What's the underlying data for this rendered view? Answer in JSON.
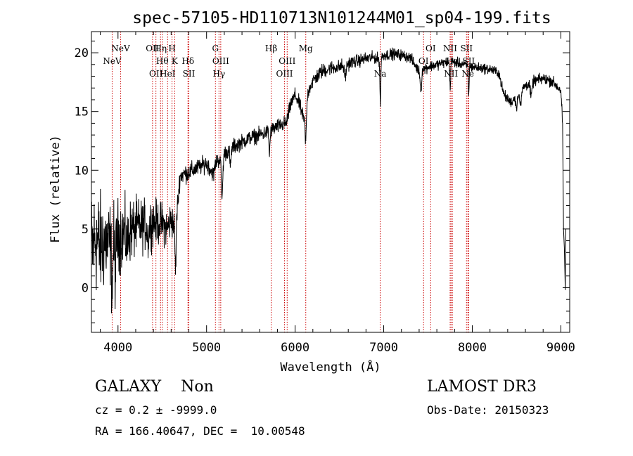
{
  "chart_data": {
    "type": "line",
    "title": "spec-57105-HD110713N101244M01_sp04-199.fits",
    "xlabel": "Wavelength (Å)",
    "ylabel": "Flux (relative)",
    "xlim": [
      3700,
      9100
    ],
    "ylim": [
      -3.8,
      21.8
    ],
    "x_ticks": [
      4000,
      5000,
      6000,
      7000,
      8000,
      9000
    ],
    "y_ticks": [
      0,
      5,
      10,
      15,
      20
    ],
    "series": [
      {
        "name": "spectrum",
        "color": "#000000",
        "anchors": [
          [
            3700,
            3.0
          ],
          [
            3750,
            4.2
          ],
          [
            3800,
            3.5
          ],
          [
            3850,
            4.0
          ],
          [
            3900,
            3.6
          ],
          [
            3950,
            4.6
          ],
          [
            4000,
            4.4
          ],
          [
            4100,
            4.7
          ],
          [
            4200,
            5.1
          ],
          [
            4300,
            5.3
          ],
          [
            4400,
            5.6
          ],
          [
            4500,
            5.5
          ],
          [
            4550,
            5.0
          ],
          [
            4600,
            5.8
          ],
          [
            4650,
            5.0
          ],
          [
            4700,
            9.5
          ],
          [
            4750,
            9.7
          ],
          [
            4800,
            9.8
          ],
          [
            4900,
            10.2
          ],
          [
            5000,
            10.6
          ],
          [
            5080,
            9.6
          ],
          [
            5100,
            10.6
          ],
          [
            5200,
            11.4
          ],
          [
            5300,
            12.0
          ],
          [
            5400,
            12.4
          ],
          [
            5500,
            12.8
          ],
          [
            5600,
            13.0
          ],
          [
            5700,
            13.3
          ],
          [
            5800,
            13.7
          ],
          [
            5900,
            14.0
          ],
          [
            5950,
            15.6
          ],
          [
            6000,
            16.4
          ],
          [
            6050,
            15.6
          ],
          [
            6100,
            14.2
          ],
          [
            6150,
            16.8
          ],
          [
            6200,
            17.6
          ],
          [
            6300,
            18.4
          ],
          [
            6400,
            18.7
          ],
          [
            6500,
            18.8
          ],
          [
            6600,
            19.1
          ],
          [
            6700,
            19.3
          ],
          [
            6800,
            19.5
          ],
          [
            6900,
            19.6
          ],
          [
            6950,
            19.4
          ],
          [
            7000,
            19.8
          ],
          [
            7100,
            19.9
          ],
          [
            7200,
            19.8
          ],
          [
            7300,
            19.6
          ],
          [
            7400,
            18.4
          ],
          [
            7450,
            18.6
          ],
          [
            7500,
            18.8
          ],
          [
            7600,
            19.0
          ],
          [
            7700,
            19.2
          ],
          [
            7800,
            19.2
          ],
          [
            7900,
            19.0
          ],
          [
            8000,
            18.8
          ],
          [
            8100,
            18.7
          ],
          [
            8200,
            18.6
          ],
          [
            8300,
            18.3
          ],
          [
            8350,
            16.6
          ],
          [
            8400,
            16.0
          ],
          [
            8450,
            15.8
          ],
          [
            8500,
            16.6
          ],
          [
            8600,
            17.2
          ],
          [
            8700,
            17.6
          ],
          [
            8800,
            17.8
          ],
          [
            8900,
            17.6
          ],
          [
            8950,
            17.2
          ],
          [
            9000,
            16.8
          ],
          [
            9020,
            14.0
          ]
        ],
        "noise": [
          [
            3700,
            3.6
          ],
          [
            4000,
            2.2
          ],
          [
            4300,
            1.5
          ],
          [
            4600,
            1.1
          ],
          [
            4700,
            0.6
          ],
          [
            5000,
            0.5
          ],
          [
            5500,
            0.45
          ],
          [
            6000,
            0.45
          ],
          [
            6300,
            0.45
          ],
          [
            7000,
            0.35
          ],
          [
            8000,
            0.3
          ],
          [
            9000,
            0.35
          ]
        ],
        "absorption": [
          [
            3934,
            4.0,
            12
          ],
          [
            3969,
            3.0,
            12
          ],
          [
            4102,
            1.2,
            14
          ],
          [
            4340,
            1.2,
            14
          ],
          [
            4650,
            3.5,
            8
          ],
          [
            5175,
            3.5,
            12
          ],
          [
            5270,
            1.5,
            10
          ],
          [
            5710,
            2.0,
            8
          ],
          [
            6120,
            2.8,
            10
          ],
          [
            6565,
            1.0,
            16
          ],
          [
            6962,
            3.8,
            7
          ],
          [
            7420,
            1.8,
            10
          ],
          [
            7750,
            2.2,
            7
          ],
          [
            7960,
            2.5,
            6
          ],
          [
            8500,
            1.2,
            14
          ],
          [
            8545,
            1.4,
            14
          ],
          [
            8665,
            1.2,
            14
          ]
        ],
        "end_drop": [
          [
            9030,
            5.0
          ],
          [
            9040,
            3.4
          ],
          [
            9050,
            -0.2
          ],
          [
            9055,
            5.0
          ]
        ]
      }
    ],
    "lines": [
      {
        "wavelength": 3934,
        "label": "NeV",
        "row": 1
      },
      {
        "wavelength": 4030,
        "label": "NeV",
        "row": 0
      },
      {
        "wavelength": 4390,
        "label": "OII",
        "row": 0
      },
      {
        "wavelength": 4428,
        "label": "OII",
        "row": 2
      },
      {
        "wavelength": 4480,
        "label": "Hη",
        "row": 0
      },
      {
        "wavelength": 4500,
        "label": "Hθ",
        "row": 1
      },
      {
        "wavelength": 4560,
        "label": "HeI",
        "row": 2
      },
      {
        "wavelength": 4610,
        "label": "H",
        "row": 0
      },
      {
        "wavelength": 4640,
        "label": "K",
        "row": 1
      },
      {
        "wavelength": 4790,
        "label": "Hδ",
        "row": 1
      },
      {
        "wavelength": 4800,
        "label": "SII",
        "row": 2
      },
      {
        "wavelength": 5100,
        "label": "G",
        "row": 0
      },
      {
        "wavelength": 5160,
        "label": "OIII",
        "row": 1
      },
      {
        "wavelength": 5140,
        "label": "Hγ",
        "row": 2
      },
      {
        "wavelength": 5730,
        "label": "Hβ",
        "row": 0
      },
      {
        "wavelength": 5910,
        "label": "OIII",
        "row": 1
      },
      {
        "wavelength": 5880,
        "label": "OIII",
        "row": 2
      },
      {
        "wavelength": 6120,
        "label": "Mg",
        "row": 0
      },
      {
        "wavelength": 6960,
        "label": "Na",
        "row": 2
      },
      {
        "wavelength": 7450,
        "label": "OI",
        "row": 1
      },
      {
        "wavelength": 7530,
        "label": "OI",
        "row": 0
      },
      {
        "wavelength": 7750,
        "label": "NII",
        "row": 0
      },
      {
        "wavelength": 7775,
        "label": "Hα",
        "row": 1
      },
      {
        "wavelength": 7760,
        "label": "NII",
        "row": 2
      },
      {
        "wavelength": 7935,
        "label": "SII",
        "row": 0
      },
      {
        "wavelength": 7960,
        "label": "SII",
        "row": 1
      },
      {
        "wavelength": 7950,
        "label": "Ne",
        "row": 2
      }
    ]
  },
  "info": {
    "class_text": "GALAXY    Non",
    "survey": "LAMOST DR3",
    "cz_text": "cz = 0.2 ± -9999.0",
    "obs_date_text": "Obs-Date: 20150323",
    "coords_text": "RA = 166.40647, DEC =  10.00548"
  },
  "colors": {
    "spectrum": "#000000",
    "marker_line": "#cc0000",
    "axis": "#000000"
  }
}
